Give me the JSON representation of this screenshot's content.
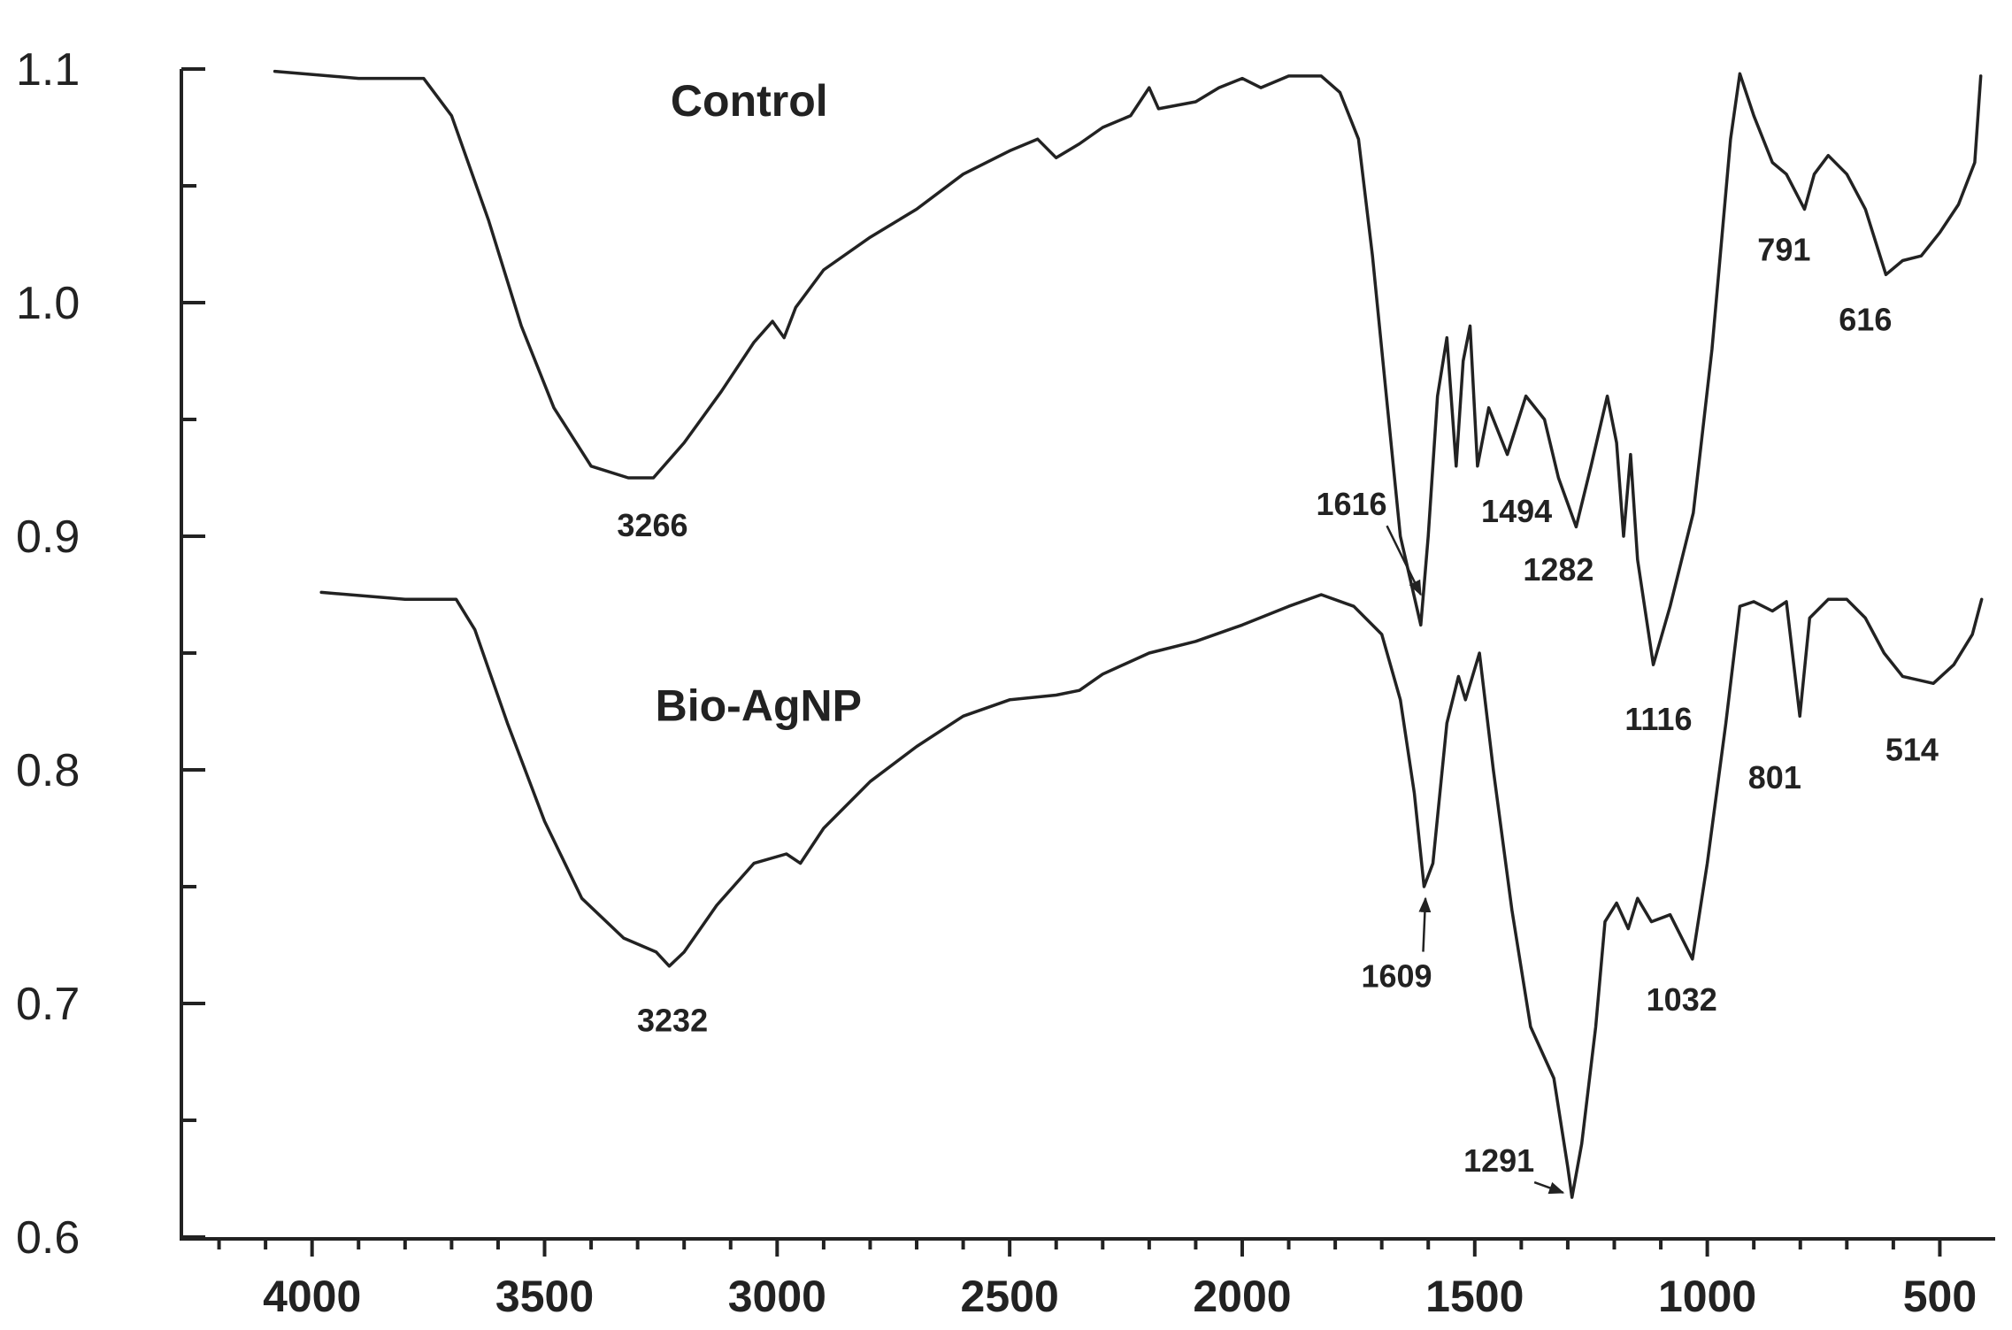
{
  "chart_data": {
    "type": "line",
    "title": "",
    "xlabel": "",
    "ylabel": "",
    "xlim": [
      4300,
      400
    ],
    "ylim": [
      0.6,
      1.1
    ],
    "x_ticks": [
      "4000",
      "3500",
      "3000",
      "2500",
      "2000",
      "1500",
      "1000",
      "500"
    ],
    "y_ticks": [
      "1.1",
      "1.0",
      "0.9",
      "0.8",
      "0.7",
      "0.6"
    ],
    "grid": false,
    "series": [
      {
        "name": "Control",
        "points": [
          [
            4080,
            1.099
          ],
          [
            3900,
            1.096
          ],
          [
            3760,
            1.096
          ],
          [
            3700,
            1.08
          ],
          [
            3620,
            1.035
          ],
          [
            3550,
            0.99
          ],
          [
            3480,
            0.955
          ],
          [
            3400,
            0.93
          ],
          [
            3320,
            0.925
          ],
          [
            3266,
            0.925
          ],
          [
            3200,
            0.94
          ],
          [
            3120,
            0.962
          ],
          [
            3050,
            0.983
          ],
          [
            3010,
            0.992
          ],
          [
            2985,
            0.985
          ],
          [
            2960,
            0.998
          ],
          [
            2900,
            1.014
          ],
          [
            2800,
            1.028
          ],
          [
            2700,
            1.04
          ],
          [
            2600,
            1.055
          ],
          [
            2500,
            1.065
          ],
          [
            2440,
            1.07
          ],
          [
            2400,
            1.062
          ],
          [
            2350,
            1.068
          ],
          [
            2300,
            1.075
          ],
          [
            2240,
            1.08
          ],
          [
            2200,
            1.092
          ],
          [
            2180,
            1.083
          ],
          [
            2100,
            1.086
          ],
          [
            2050,
            1.092
          ],
          [
            2000,
            1.096
          ],
          [
            1960,
            1.092
          ],
          [
            1900,
            1.097
          ],
          [
            1830,
            1.097
          ],
          [
            1790,
            1.09
          ],
          [
            1750,
            1.07
          ],
          [
            1720,
            1.02
          ],
          [
            1690,
            0.96
          ],
          [
            1660,
            0.9
          ],
          [
            1616,
            0.862
          ],
          [
            1600,
            0.9
          ],
          [
            1580,
            0.96
          ],
          [
            1560,
            0.985
          ],
          [
            1540,
            0.93
          ],
          [
            1525,
            0.975
          ],
          [
            1510,
            0.99
          ],
          [
            1494,
            0.93
          ],
          [
            1470,
            0.955
          ],
          [
            1430,
            0.935
          ],
          [
            1390,
            0.96
          ],
          [
            1350,
            0.95
          ],
          [
            1320,
            0.925
          ],
          [
            1282,
            0.904
          ],
          [
            1250,
            0.93
          ],
          [
            1215,
            0.96
          ],
          [
            1195,
            0.94
          ],
          [
            1180,
            0.9
          ],
          [
            1165,
            0.935
          ],
          [
            1150,
            0.89
          ],
          [
            1116,
            0.845
          ],
          [
            1080,
            0.87
          ],
          [
            1030,
            0.91
          ],
          [
            990,
            0.98
          ],
          [
            950,
            1.07
          ],
          [
            930,
            1.098
          ],
          [
            900,
            1.08
          ],
          [
            860,
            1.06
          ],
          [
            830,
            1.055
          ],
          [
            791,
            1.04
          ],
          [
            770,
            1.055
          ],
          [
            740,
            1.063
          ],
          [
            700,
            1.055
          ],
          [
            660,
            1.04
          ],
          [
            616,
            1.012
          ],
          [
            580,
            1.018
          ],
          [
            540,
            1.02
          ],
          [
            500,
            1.03
          ],
          [
            460,
            1.042
          ],
          [
            425,
            1.06
          ],
          [
            412,
            1.097
          ]
        ]
      },
      {
        "name": "Bio-AgNP",
        "points": [
          [
            3980,
            0.876
          ],
          [
            3800,
            0.873
          ],
          [
            3690,
            0.873
          ],
          [
            3650,
            0.86
          ],
          [
            3580,
            0.82
          ],
          [
            3500,
            0.778
          ],
          [
            3420,
            0.745
          ],
          [
            3330,
            0.728
          ],
          [
            3260,
            0.722
          ],
          [
            3232,
            0.716
          ],
          [
            3200,
            0.722
          ],
          [
            3130,
            0.742
          ],
          [
            3050,
            0.76
          ],
          [
            2980,
            0.764
          ],
          [
            2950,
            0.76
          ],
          [
            2900,
            0.775
          ],
          [
            2800,
            0.795
          ],
          [
            2700,
            0.81
          ],
          [
            2600,
            0.823
          ],
          [
            2500,
            0.83
          ],
          [
            2400,
            0.832
          ],
          [
            2350,
            0.834
          ],
          [
            2300,
            0.841
          ],
          [
            2200,
            0.85
          ],
          [
            2100,
            0.855
          ],
          [
            2000,
            0.862
          ],
          [
            1900,
            0.87
          ],
          [
            1830,
            0.875
          ],
          [
            1760,
            0.87
          ],
          [
            1700,
            0.858
          ],
          [
            1660,
            0.83
          ],
          [
            1630,
            0.79
          ],
          [
            1609,
            0.75
          ],
          [
            1590,
            0.76
          ],
          [
            1560,
            0.82
          ],
          [
            1535,
            0.84
          ],
          [
            1520,
            0.83
          ],
          [
            1490,
            0.85
          ],
          [
            1460,
            0.8
          ],
          [
            1420,
            0.74
          ],
          [
            1380,
            0.69
          ],
          [
            1330,
            0.668
          ],
          [
            1300,
            0.63
          ],
          [
            1291,
            0.617
          ],
          [
            1270,
            0.64
          ],
          [
            1240,
            0.69
          ],
          [
            1220,
            0.735
          ],
          [
            1195,
            0.743
          ],
          [
            1170,
            0.732
          ],
          [
            1150,
            0.745
          ],
          [
            1120,
            0.735
          ],
          [
            1080,
            0.738
          ],
          [
            1032,
            0.719
          ],
          [
            1000,
            0.76
          ],
          [
            960,
            0.82
          ],
          [
            930,
            0.87
          ],
          [
            900,
            0.872
          ],
          [
            860,
            0.868
          ],
          [
            830,
            0.872
          ],
          [
            801,
            0.823
          ],
          [
            780,
            0.865
          ],
          [
            740,
            0.873
          ],
          [
            700,
            0.873
          ],
          [
            660,
            0.865
          ],
          [
            620,
            0.85
          ],
          [
            580,
            0.84
          ],
          [
            514,
            0.837
          ],
          [
            470,
            0.845
          ],
          [
            430,
            0.858
          ],
          [
            410,
            0.873
          ]
        ]
      }
    ],
    "series_labels": [
      {
        "text": "Control",
        "x": 3060,
        "y": 1.08
      },
      {
        "text": "Bio-AgNP",
        "x": 3040,
        "y": 0.821
      }
    ],
    "annotations": [
      {
        "text": "3266",
        "x": 3268,
        "y": 0.9
      },
      {
        "text": "1616",
        "x": 1765,
        "y": 0.909,
        "arrow_to": [
          1616,
          0.875
        ]
      },
      {
        "text": "1494",
        "x": 1410,
        "y": 0.906
      },
      {
        "text": "1282",
        "x": 1320,
        "y": 0.881
      },
      {
        "text": "1116",
        "x": 1105,
        "y": 0.817
      },
      {
        "text": "791",
        "x": 835,
        "y": 1.018
      },
      {
        "text": "616",
        "x": 660,
        "y": 0.988
      },
      {
        "text": "1609",
        "x": 1668,
        "y": 0.707,
        "arrow_to": [
          1606,
          0.745
        ]
      },
      {
        "text": "1032",
        "x": 1055,
        "y": 0.697
      },
      {
        "text": "3232",
        "x": 3225,
        "y": 0.688
      },
      {
        "text": "1291",
        "x": 1448,
        "y": 0.628,
        "arrow_to": [
          1310,
          0.619
        ]
      },
      {
        "text": "801",
        "x": 855,
        "y": 0.792
      },
      {
        "text": "514",
        "x": 560,
        "y": 0.804
      }
    ]
  }
}
